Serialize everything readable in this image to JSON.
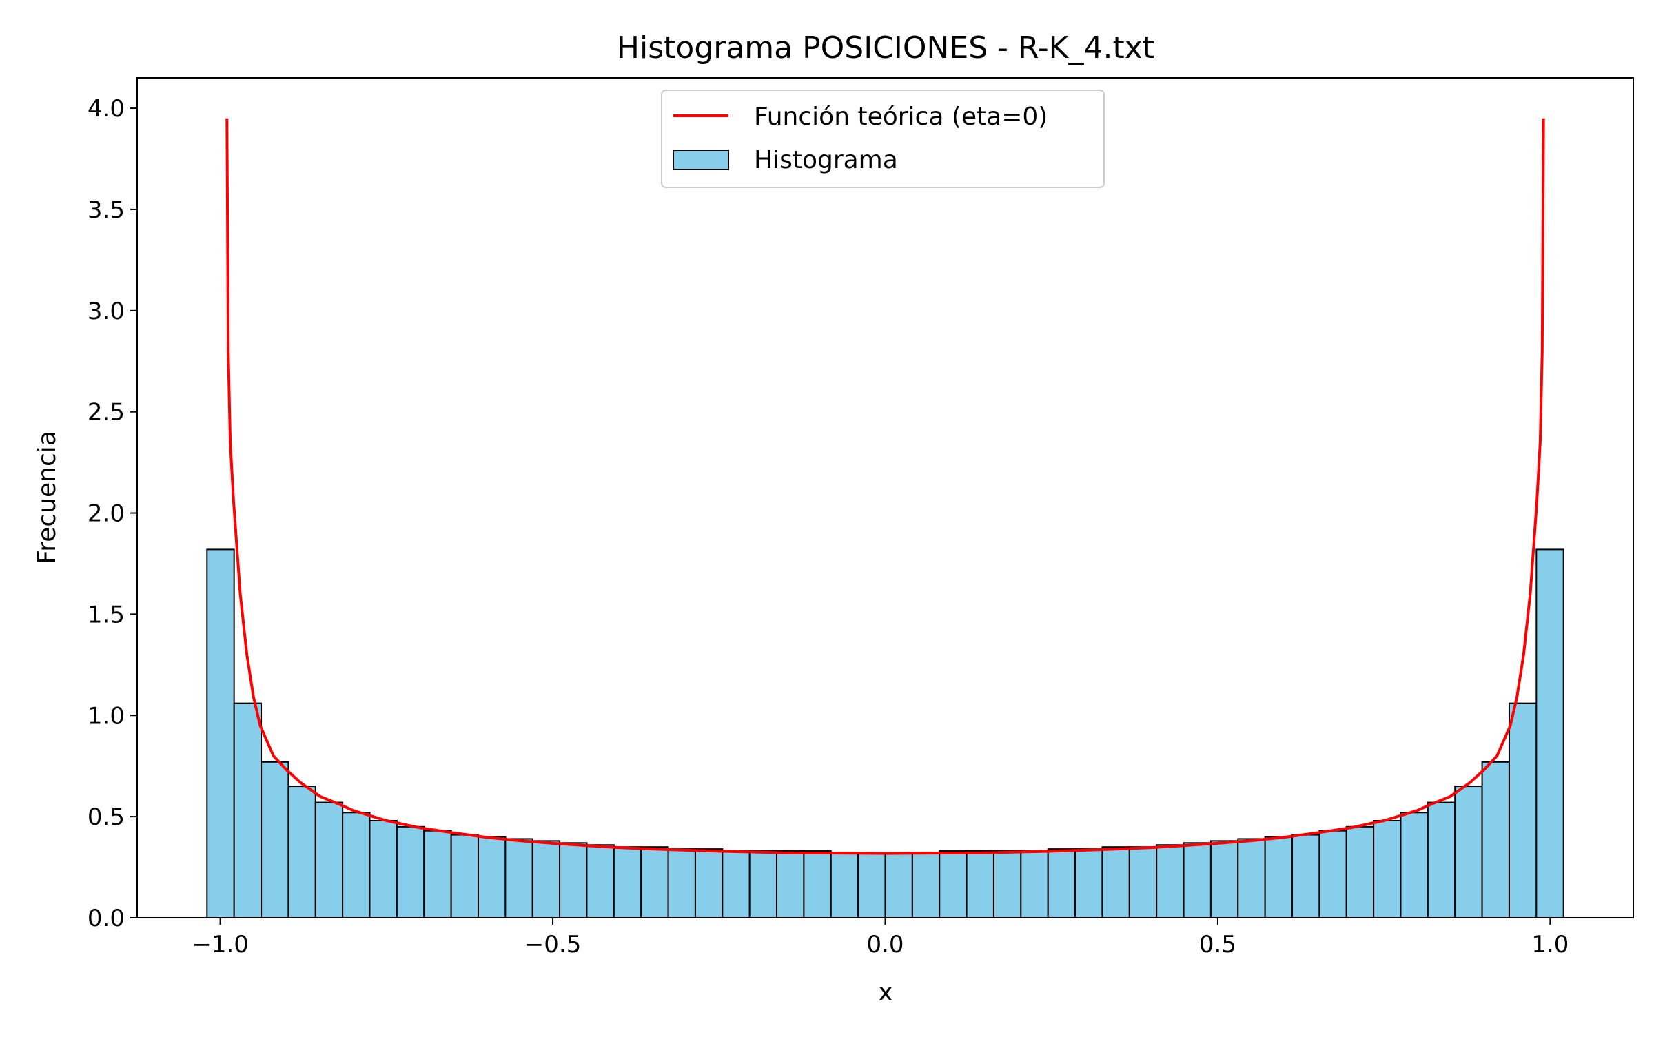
{
  "chart_data": {
    "type": "bar",
    "title": "Histograma POSICIONES - R-K_4.txt",
    "xlabel": "x",
    "ylabel": "Frecuencia",
    "xlim": [
      -1.125,
      1.125
    ],
    "ylim": [
      0,
      4.15
    ],
    "grid": false,
    "legend_position": "top-center",
    "x_ticks": [
      {
        "value": -1.0,
        "label": "−1.0"
      },
      {
        "value": -0.5,
        "label": "−0.5"
      },
      {
        "value": 0.0,
        "label": "0.0"
      },
      {
        "value": 0.5,
        "label": "0.5"
      },
      {
        "value": 1.0,
        "label": "1.0"
      }
    ],
    "y_ticks": [
      {
        "value": 0.0,
        "label": "0.0"
      },
      {
        "value": 0.5,
        "label": "0.5"
      },
      {
        "value": 1.0,
        "label": "1.0"
      },
      {
        "value": 1.5,
        "label": "1.5"
      },
      {
        "value": 2.0,
        "label": "2.0"
      },
      {
        "value": 2.5,
        "label": "2.5"
      },
      {
        "value": 3.0,
        "label": "3.0"
      },
      {
        "value": 3.5,
        "label": "3.5"
      },
      {
        "value": 4.0,
        "label": "4.0"
      }
    ],
    "histogram": {
      "name": "Histograma",
      "color": "#87ceeb",
      "edge_color": "#000000",
      "bin_range": [
        -1.02,
        1.02
      ],
      "values": [
        1.82,
        1.06,
        0.77,
        0.65,
        0.57,
        0.52,
        0.48,
        0.45,
        0.43,
        0.41,
        0.4,
        0.39,
        0.38,
        0.37,
        0.36,
        0.35,
        0.35,
        0.34,
        0.34,
        0.33,
        0.33,
        0.33,
        0.33,
        0.32,
        0.32,
        0.32,
        0.32,
        0.33,
        0.33,
        0.33,
        0.33,
        0.34,
        0.34,
        0.35,
        0.35,
        0.36,
        0.37,
        0.38,
        0.39,
        0.4,
        0.41,
        0.43,
        0.45,
        0.48,
        0.52,
        0.57,
        0.65,
        0.77,
        1.06,
        1.82
      ]
    },
    "curve": {
      "name": "Función teórica (eta=0)",
      "color": "#ff0000",
      "x": [
        -0.99,
        -0.988,
        -0.985,
        -0.98,
        -0.975,
        -0.97,
        -0.96,
        -0.95,
        -0.94,
        -0.92,
        -0.9,
        -0.88,
        -0.85,
        -0.82,
        -0.8,
        -0.75,
        -0.7,
        -0.65,
        -0.6,
        -0.55,
        -0.5,
        -0.45,
        -0.4,
        -0.35,
        -0.3,
        -0.25,
        -0.2,
        -0.15,
        -0.1,
        -0.05,
        0.0,
        0.05,
        0.1,
        0.15,
        0.2,
        0.25,
        0.3,
        0.35,
        0.4,
        0.45,
        0.5,
        0.55,
        0.6,
        0.65,
        0.7,
        0.75,
        0.8,
        0.82,
        0.85,
        0.88,
        0.9,
        0.92,
        0.94,
        0.95,
        0.96,
        0.97,
        0.975,
        0.98,
        0.985,
        0.988,
        0.99
      ],
      "y": [
        3.95,
        2.8,
        2.35,
        2.06,
        1.83,
        1.6,
        1.3,
        1.09,
        0.95,
        0.8,
        0.73,
        0.67,
        0.6,
        0.56,
        0.53,
        0.48,
        0.445,
        0.42,
        0.398,
        0.381,
        0.368,
        0.357,
        0.347,
        0.34,
        0.334,
        0.329,
        0.325,
        0.321,
        0.32,
        0.319,
        0.318,
        0.319,
        0.32,
        0.321,
        0.325,
        0.329,
        0.334,
        0.34,
        0.347,
        0.357,
        0.368,
        0.381,
        0.398,
        0.42,
        0.445,
        0.48,
        0.53,
        0.56,
        0.6,
        0.67,
        0.73,
        0.8,
        0.95,
        1.09,
        1.3,
        1.6,
        1.83,
        2.06,
        2.35,
        2.8,
        3.95
      ]
    }
  }
}
